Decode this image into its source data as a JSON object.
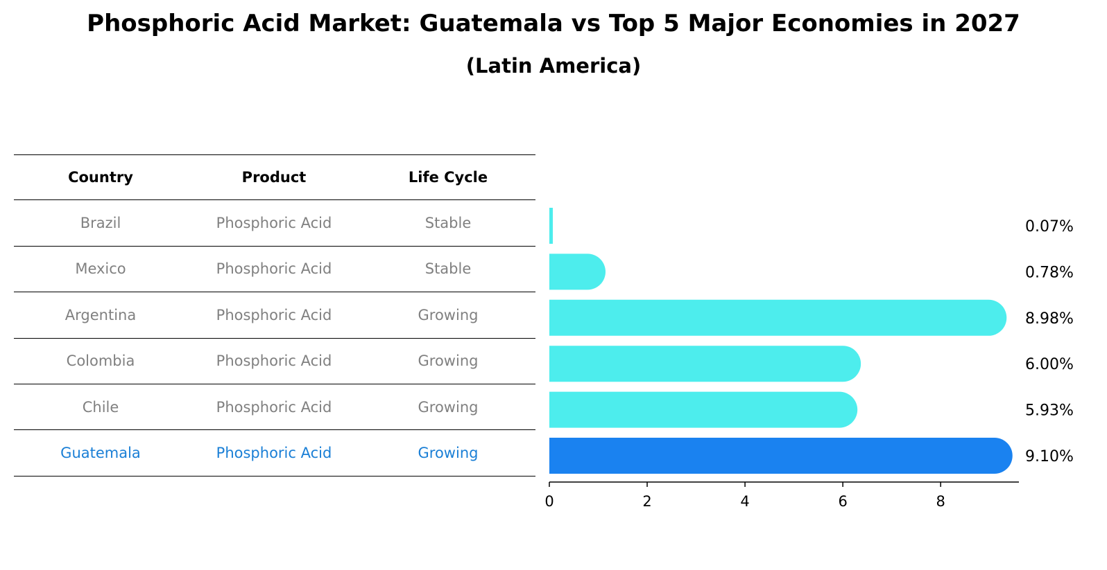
{
  "chart_data": {
    "type": "bar",
    "orientation": "horizontal",
    "title": "Phosphoric Acid Market: Guatemala vs Top 5 Major Economies in 2027",
    "subtitle": "(Latin America)",
    "table_headers": [
      "Country",
      "Product",
      "Life Cycle"
    ],
    "rows": [
      {
        "country": "Brazil",
        "product": "Phosphoric Acid",
        "life_cycle": "Stable",
        "value": 0.07,
        "label": "0.07%",
        "highlight": false
      },
      {
        "country": "Mexico",
        "product": "Phosphoric Acid",
        "life_cycle": "Stable",
        "value": 0.78,
        "label": "0.78%",
        "highlight": false
      },
      {
        "country": "Argentina",
        "product": "Phosphoric Acid",
        "life_cycle": "Growing",
        "value": 8.98,
        "label": "8.98%",
        "highlight": false
      },
      {
        "country": "Colombia",
        "product": "Phosphoric Acid",
        "life_cycle": "Growing",
        "value": 6.0,
        "label": "6.00%",
        "highlight": false
      },
      {
        "country": "Chile",
        "product": "Phosphoric Acid",
        "life_cycle": "Growing",
        "value": 5.93,
        "label": "5.93%",
        "highlight": false
      },
      {
        "country": "Guatemala",
        "product": "Phosphoric Acid",
        "life_cycle": "Growing",
        "value": 9.1,
        "label": "9.10%",
        "highlight": true
      }
    ],
    "x_ticks": [
      0,
      2,
      4,
      6,
      8
    ],
    "xlim": [
      0,
      9.6
    ],
    "colors": {
      "bar": "#4deded",
      "highlight_bar": "#1a82f0",
      "highlight_text": "#1a7fd6",
      "muted_text": "#808080"
    }
  }
}
